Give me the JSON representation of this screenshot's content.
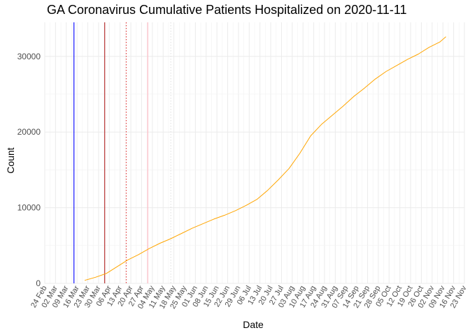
{
  "chart_data": {
    "type": "line",
    "title": "GA Coronavirus Cumulative Patients Hospitalized on 2020-11-11",
    "xlabel": "Date",
    "ylabel": "Count",
    "xlim": [
      "2020-02-24",
      "2020-11-23"
    ],
    "ylim": [
      0,
      34500
    ],
    "grid": true,
    "x_tick_labels": [
      "24 Feb",
      "02 Mar",
      "09 Mar",
      "16 Mar",
      "23 Mar",
      "30 Mar",
      "06 Apr",
      "13 Apr",
      "20 Apr",
      "27 Apr",
      "04 May",
      "11 May",
      "18 May",
      "25 May",
      "01 Jun",
      "08 Jun",
      "15 Jun",
      "22 Jun",
      "29 Jun",
      "06 Jul",
      "13 Jul",
      "20 Jul",
      "27 Jul",
      "03 Aug",
      "10 Aug",
      "17 Aug",
      "24 Aug",
      "31 Aug",
      "07 Sep",
      "14 Sep",
      "21 Sep",
      "28 Sep",
      "05 Oct",
      "12 Oct",
      "19 Oct",
      "26 Oct",
      "02 Nov",
      "09 Nov",
      "16 Nov",
      "23 Nov"
    ],
    "x_tick_dates": [
      "2020-02-24",
      "2020-03-02",
      "2020-03-09",
      "2020-03-16",
      "2020-03-23",
      "2020-03-30",
      "2020-04-06",
      "2020-04-13",
      "2020-04-20",
      "2020-04-27",
      "2020-05-04",
      "2020-05-11",
      "2020-05-18",
      "2020-05-25",
      "2020-06-01",
      "2020-06-08",
      "2020-06-15",
      "2020-06-22",
      "2020-06-29",
      "2020-07-06",
      "2020-07-13",
      "2020-07-20",
      "2020-07-27",
      "2020-08-03",
      "2020-08-10",
      "2020-08-17",
      "2020-08-24",
      "2020-08-31",
      "2020-09-07",
      "2020-09-14",
      "2020-09-21",
      "2020-09-28",
      "2020-10-05",
      "2020-10-12",
      "2020-10-19",
      "2020-10-26",
      "2020-11-02",
      "2020-11-09",
      "2020-11-16",
      "2020-11-23"
    ],
    "y_ticks": [
      0,
      10000,
      20000,
      30000
    ],
    "y_tick_labels": [
      "0",
      "10000",
      "20000",
      "30000"
    ],
    "series": [
      {
        "color": "#FFA500",
        "x": [
          "2020-03-21",
          "2020-03-28",
          "2020-04-04",
          "2020-04-11",
          "2020-04-18",
          "2020-04-25",
          "2020-05-02",
          "2020-05-09",
          "2020-05-16",
          "2020-05-23",
          "2020-05-30",
          "2020-06-06",
          "2020-06-13",
          "2020-06-20",
          "2020-06-27",
          "2020-07-04",
          "2020-07-11",
          "2020-07-18",
          "2020-07-25",
          "2020-08-01",
          "2020-08-08",
          "2020-08-15",
          "2020-08-22",
          "2020-08-29",
          "2020-09-05",
          "2020-09-12",
          "2020-09-19",
          "2020-09-26",
          "2020-10-03",
          "2020-10-10",
          "2020-10-17",
          "2020-10-24",
          "2020-10-31",
          "2020-11-07",
          "2020-11-11"
        ],
        "y": [
          400,
          800,
          1300,
          2200,
          3100,
          3800,
          4600,
          5300,
          5900,
          6600,
          7300,
          7900,
          8500,
          9000,
          9600,
          10300,
          11100,
          12300,
          13700,
          15200,
          17200,
          19500,
          21000,
          22200,
          23400,
          24700,
          25800,
          27000,
          28000,
          28800,
          29600,
          30300,
          31200,
          31900,
          32600
        ]
      }
    ],
    "vlines": [
      {
        "x": "2020-03-14",
        "color": "#0000FF",
        "style": "solid"
      },
      {
        "x": "2020-04-03",
        "color": "#B22222",
        "style": "solid"
      },
      {
        "x": "2020-04-17",
        "color": "#E03030",
        "style": "dotted"
      },
      {
        "x": "2020-05-01",
        "color": "#FFB6C1",
        "style": "solid"
      },
      {
        "x": "2020-05-16",
        "color": "#E0E0E0",
        "style": "dotted"
      }
    ]
  }
}
